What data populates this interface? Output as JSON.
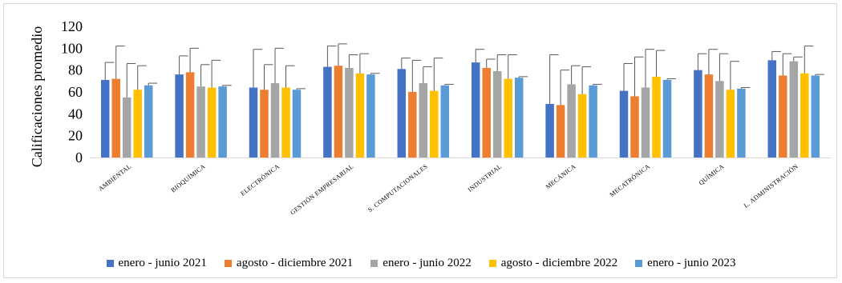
{
  "chart_data": {
    "type": "bar",
    "ylabel": "Calificaciones promedio",
    "xlabel": "",
    "ylim": [
      0,
      120
    ],
    "yticks": [
      0,
      20,
      40,
      60,
      80,
      100,
      120
    ],
    "categories": [
      "AMBIENTAL",
      "BIOQUÍMICA",
      "ELECTRÓNICA",
      "GESTIÓN EMPRESARIAL",
      "S. COMPUTACIONALES",
      "INDUSTRIAL",
      "MECÁNICA",
      "MECATRÓNICA",
      "QUÍMICA",
      "L. ADMINISTRACIÓN"
    ],
    "series": [
      {
        "name": "enero - junio 2021",
        "color": "#4472c4",
        "values": [
          71,
          76,
          64,
          83,
          81,
          87,
          49,
          61,
          80,
          89
        ],
        "errors": [
          16,
          17,
          35,
          19,
          10,
          12,
          45,
          25,
          15,
          8
        ]
      },
      {
        "name": "agosto - diciembre 2021",
        "color": "#ed7d31",
        "values": [
          72,
          78,
          62,
          84,
          60,
          82,
          48,
          56,
          76,
          75
        ],
        "errors": [
          30,
          22,
          23,
          20,
          29,
          8,
          32,
          36,
          23,
          20
        ]
      },
      {
        "name": "enero - junio 2022",
        "color": "#a5a5a5",
        "values": [
          55,
          65,
          68,
          82,
          68,
          79,
          67,
          64,
          70,
          88
        ],
        "errors": [
          31,
          20,
          32,
          12,
          15,
          15,
          17,
          35,
          25,
          4
        ]
      },
      {
        "name": "agosto - diciembre 2022",
        "color": "#ffc000",
        "values": [
          62,
          64,
          64,
          77,
          61,
          72,
          58,
          74,
          62,
          77
        ],
        "errors": [
          22,
          25,
          20,
          18,
          30,
          22,
          25,
          24,
          26,
          25
        ]
      },
      {
        "name": "enero - junio 2023",
        "color": "#5b9bd5",
        "values": [
          66,
          65,
          62,
          76,
          66,
          73,
          66,
          71,
          63,
          75
        ],
        "errors": [
          2,
          1,
          1,
          1,
          1,
          1,
          1,
          1,
          1,
          1
        ]
      }
    ],
    "grid": false,
    "legend_position": "bottom"
  }
}
